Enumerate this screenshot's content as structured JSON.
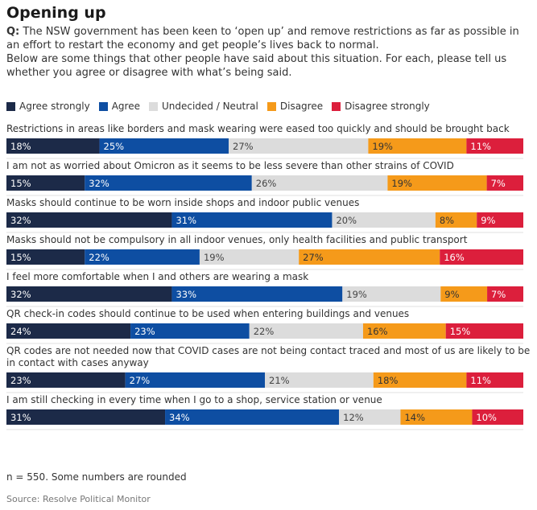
{
  "title": "Opening up",
  "question_prefix": "Q:",
  "question_text": "The NSW government has been keen to ‘open up’ and remove restrictions as far as possible in an effort to restart the economy and get people’s lives back to normal.",
  "question_text_2": "Below are some things that other people have said about this situation. For each, please tell us whether you agree or disagree with what’s being said.",
  "note": "n = 550. Some numbers are rounded",
  "source": "Source: Resolve Political Monitor",
  "chart_data": {
    "type": "bar",
    "stacked": true,
    "orientation": "horizontal",
    "value_unit": "%",
    "legend_position": "top",
    "series": [
      {
        "name": "Agree strongly",
        "color": "#1c2a48",
        "label_color": "#ffffff",
        "values": [
          18,
          15,
          32,
          15,
          32,
          24,
          23,
          31
        ]
      },
      {
        "name": "Agree",
        "color": "#0e4ea2",
        "label_color": "#ffffff",
        "values": [
          25,
          32,
          31,
          22,
          33,
          23,
          27,
          34
        ]
      },
      {
        "name": "Undecided / Neutral",
        "color": "#dcdcdc",
        "label_color": "#444444",
        "values": [
          27,
          26,
          20,
          19,
          19,
          22,
          21,
          12
        ]
      },
      {
        "name": "Disagree",
        "color": "#f59a1a",
        "label_color": "#333333",
        "values": [
          19,
          19,
          8,
          27,
          9,
          16,
          18,
          14
        ]
      },
      {
        "name": "Disagree strongly",
        "color": "#dc1f3c",
        "label_color": "#ffffff",
        "values": [
          11,
          7,
          9,
          16,
          7,
          15,
          11,
          10
        ]
      }
    ],
    "categories": [
      "Restrictions in areas like borders and mask wearing were eased too quickly and should be brought back",
      "I am not as worried about Omicron as it seems to be less severe than other strains of COVID",
      "Masks should continue to be worn inside shops and indoor public venues",
      "Masks should not be compulsory in all indoor venues, only health facilities and public transport",
      "I feel more comfortable when I and others are wearing a mask",
      "QR check-in codes should continue to be used when entering buildings and venues",
      "QR codes are not needed now that COVID cases are not being contact traced and most of us are likely to be in contact with cases anyway",
      "I am still checking in every time when I go to a shop, service station or venue"
    ]
  }
}
